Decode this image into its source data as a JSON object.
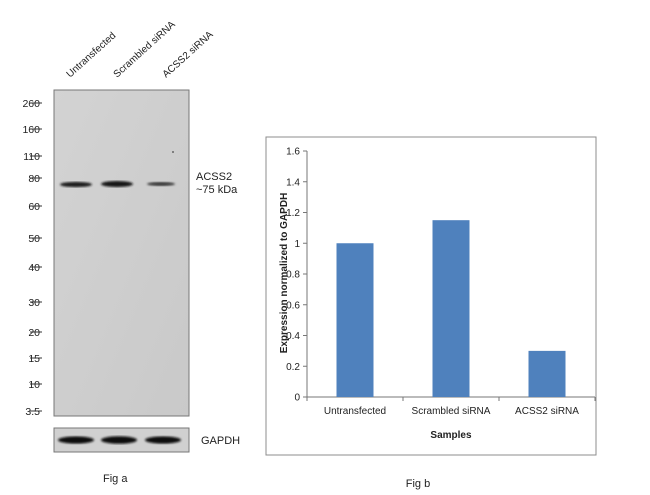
{
  "fig_a": {
    "caption": "Fig a",
    "lanes": [
      "Untransfected",
      "Scrambled siRNA",
      "ACSS2  siRNA"
    ],
    "markers": [
      "260",
      "160",
      "110",
      "80",
      "60",
      "50",
      "40",
      "30",
      "20",
      "15",
      "10",
      "3.5"
    ],
    "band_label_line1": "ACSS2",
    "band_label_line2": "~75 kDa",
    "loading_label": "GAPDH"
  },
  "fig_b": {
    "caption": "Fig b"
  },
  "chart_data": {
    "type": "bar",
    "title": "",
    "xlabel": "Samples",
    "ylabel": "Expression normalized to GAPDH",
    "categories": [
      "Untransfected",
      "Scrambled siRNA",
      "ACSS2 siRNA"
    ],
    "values": [
      1.0,
      1.15,
      0.3
    ],
    "ylim": [
      0,
      1.6
    ],
    "yticks": [
      "0",
      "0.2",
      "0.4",
      "0.6",
      "0.8",
      "1",
      "1.2",
      "1.4",
      "1.6"
    ],
    "grid": false,
    "legend": "none",
    "bar_color": "#4f81bd"
  }
}
